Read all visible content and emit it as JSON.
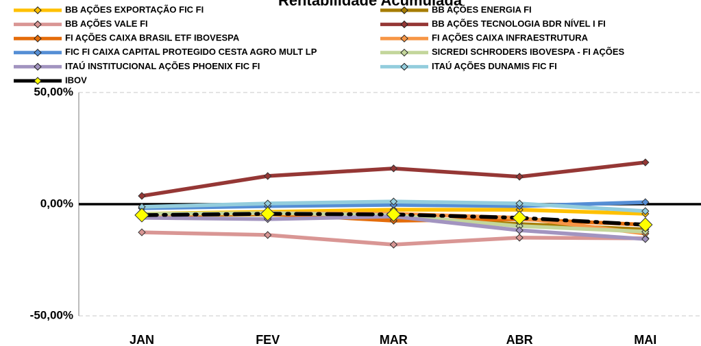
{
  "chart_data": {
    "type": "line",
    "title": "Rentabilidade Acumulada",
    "categories": [
      "JAN",
      "FEV",
      "MAR",
      "ABR",
      "MAI"
    ],
    "ylim": [
      -50,
      50
    ],
    "yticks": [
      {
        "value": -50,
        "label": "-50,00%"
      },
      {
        "value": 0,
        "label": "0,00%"
      },
      {
        "value": 50,
        "label": "50,00%"
      }
    ],
    "grid": true,
    "series": [
      {
        "name": "BB AÇÕES EXPORTAÇÃO FIC FI",
        "color": "#ffc000",
        "values": [
          -4.3,
          -3.4,
          -2.5,
          -2.5,
          -4.3
        ]
      },
      {
        "name": "BB AÇÕES ENERGIA FI",
        "color": "#a67c00",
        "values": [
          -4.9,
          -4.6,
          -6.1,
          -8.9,
          -11.3
        ]
      },
      {
        "name": "BB AÇÕES VALE FI",
        "color": "#d99694",
        "values": [
          -12.6,
          -13.8,
          -18.1,
          -15.0,
          -15.3
        ]
      },
      {
        "name": "BB AÇÕES TECNOLOGIA BDR NÍVEL I FI",
        "color": "#953735",
        "values": [
          3.7,
          12.6,
          16.0,
          12.3,
          18.7
        ]
      },
      {
        "name": "FI AÇÕES CAIXA BRASIL ETF IBOVESPA",
        "color": "#e46c0a",
        "values": [
          -4.9,
          -4.3,
          -7.4,
          -6.7,
          -9.2
        ]
      },
      {
        "name": "FI AÇÕES CAIXA INFRAESTRUTURA",
        "color": "#f79646",
        "values": [
          -4.6,
          -4.0,
          -4.3,
          -6.1,
          -13.2
        ]
      },
      {
        "name": "FIC FI CAIXA CAPITAL PROTEGIDO CESTA AGRO MULT LP",
        "color": "#558ed5",
        "values": [
          -1.8,
          -0.9,
          -0.3,
          -0.9,
          0.9
        ]
      },
      {
        "name": "SICREDI SCHRODERS IBOVESPA - FI AÇÕES",
        "color": "#c3d69b",
        "values": [
          -4.3,
          -4.0,
          -4.9,
          -9.8,
          -12.3
        ]
      },
      {
        "name": "ITAÚ INSTITUCIONAL AÇÕES PHOENIX FIC FI",
        "color": "#a294c0",
        "values": [
          -6.1,
          -6.7,
          -5.5,
          -11.7,
          -15.6
        ]
      },
      {
        "name": "ITAÚ AÇÕES DUNAMIS FIC FI",
        "color": "#93cddd",
        "values": [
          -1.2,
          0.3,
          1.2,
          0.3,
          -3.1
        ]
      },
      {
        "name": "IBOV",
        "color": "#000000",
        "marker_color": "#ffff00",
        "line_style": "dash-dot",
        "values": [
          -4.9,
          -4.3,
          -4.6,
          -6.1,
          -9.2
        ]
      }
    ]
  }
}
